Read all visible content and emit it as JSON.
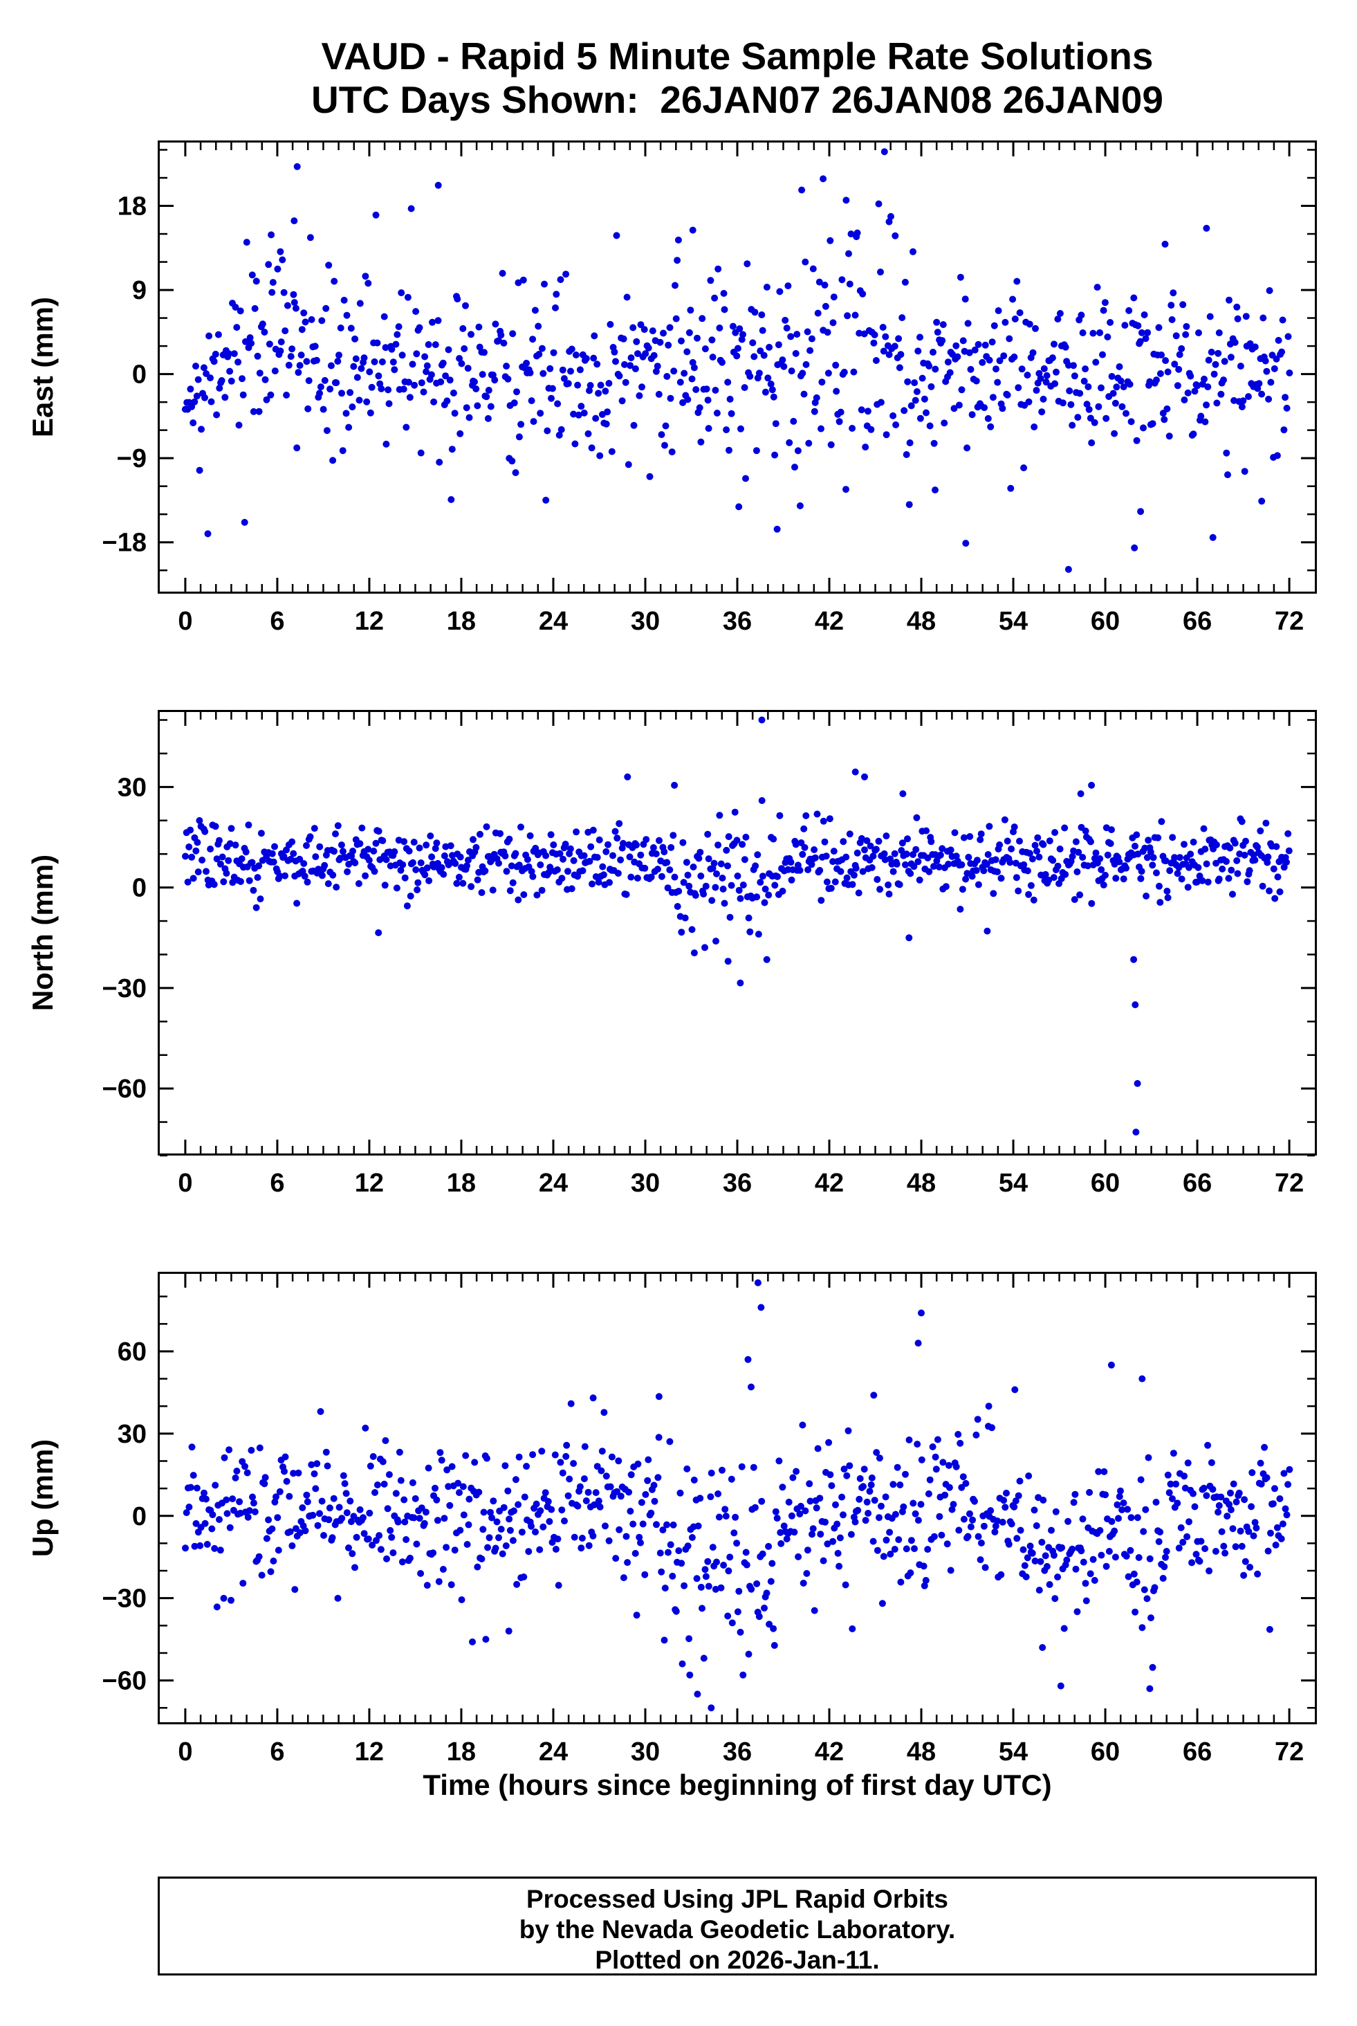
{
  "title": {
    "line1": "VAUD - Rapid 5 Minute Sample Rate Solutions",
    "line2": "UTC Days Shown:  26JAN07 26JAN08 26JAN09"
  },
  "xlabel": "Time (hours since beginning of first day UTC)",
  "footer": {
    "lines": [
      "Processed Using JPL Rapid Orbits",
      "by the Nevada Geodetic Laboratory.",
      "Plotted on 2026-Jan-11."
    ]
  },
  "style": {
    "point_color": "#0000dd",
    "frame_color": "#000000",
    "point_radius": 5,
    "frame_width": 3,
    "major_tick_len": 20,
    "minor_tick_len": 11,
    "tick_label_size": 38,
    "axis_label_size": 42
  },
  "chart_data": [
    {
      "type": "scatter",
      "name": "east",
      "ylabel": "East (mm)",
      "xlim": [
        -1.8,
        73.8
      ],
      "ylim": [
        -23.5,
        25.0
      ],
      "x_major_ticks": [
        0,
        6,
        12,
        18,
        24,
        30,
        36,
        42,
        48,
        54,
        60,
        66,
        72
      ],
      "x_minor_step": 1,
      "y_major_ticks": [
        -18,
        -9,
        0,
        9,
        18
      ],
      "y_minor_step": 3,
      "grid": false,
      "legend": false,
      "synthetic": {
        "seed": 11,
        "n": 840,
        "x_start": 0,
        "x_end": 72,
        "mean": 0,
        "std": 4.3,
        "tail_prob": 0.07,
        "tail_scale": 6.5,
        "clip": [
          -21.0,
          23.5
        ],
        "regions": [
          {
            "x0": 2.5,
            "x1": 8.5,
            "mean": 3.0,
            "std": 5.0
          },
          {
            "x0": 39.0,
            "x1": 47.0,
            "mean": 1.5,
            "std": 7.0
          }
        ],
        "extra_points": [
          [
            7.3,
            22.2
          ],
          [
            16.5,
            20.2
          ],
          [
            45.6,
            23.8
          ],
          [
            40.2,
            19.7
          ],
          [
            41.6,
            20.9
          ],
          [
            43.1,
            18.6
          ],
          [
            45.9,
            16.3
          ],
          [
            46.3,
            14.8
          ],
          [
            33.1,
            15.4
          ],
          [
            57.6,
            -20.9
          ],
          [
            61.9,
            -18.6
          ],
          [
            50.9,
            -18.1
          ],
          [
            38.6,
            -16.6
          ],
          [
            62.3,
            -14.7
          ],
          [
            70.2,
            -13.6
          ],
          [
            66.6,
            15.6
          ],
          [
            63.9,
            13.9
          ],
          [
            5.6,
            14.9
          ],
          [
            7.1,
            16.4
          ],
          [
            6.2,
            13.1
          ],
          [
            48.9,
            -12.4
          ],
          [
            36.1,
            -14.2
          ]
        ]
      }
    },
    {
      "type": "scatter",
      "name": "north",
      "ylabel": "North (mm)",
      "xlim": [
        -1.8,
        73.8
      ],
      "ylim": [
        -80,
        53
      ],
      "x_major_ticks": [
        0,
        6,
        12,
        18,
        24,
        30,
        36,
        42,
        48,
        54,
        60,
        66,
        72
      ],
      "x_minor_step": 1,
      "y_major_ticks": [
        -60,
        -30,
        0,
        30
      ],
      "y_minor_step": 10,
      "grid": false,
      "legend": false,
      "synthetic": {
        "seed": 22,
        "n": 840,
        "x_start": 0,
        "x_end": 72,
        "mean": 8,
        "std": 5.0,
        "tail_prob": 0.05,
        "tail_scale": 7.0,
        "clip": [
          -29,
          33
        ],
        "regions": [
          {
            "x0": 31.5,
            "x1": 38.5,
            "mean": 3.0,
            "std": 10.0
          }
        ],
        "extra_points": [
          [
            37.6,
            50
          ],
          [
            43.7,
            34.5
          ],
          [
            44.3,
            33
          ],
          [
            46.8,
            28
          ],
          [
            31.9,
            30.5
          ],
          [
            36.2,
            -28.5
          ],
          [
            35.4,
            -22
          ],
          [
            33.2,
            -19.5
          ],
          [
            34.6,
            -16
          ],
          [
            62.0,
            -73
          ],
          [
            62.1,
            -58.5
          ],
          [
            61.95,
            -35
          ],
          [
            61.85,
            -21.5
          ],
          [
            52.3,
            -13
          ],
          [
            47.2,
            -15
          ],
          [
            12.6,
            -13.5
          ],
          [
            58.4,
            28
          ],
          [
            59.1,
            30.5
          ]
        ]
      }
    },
    {
      "type": "scatter",
      "name": "up",
      "ylabel": "Up (mm)",
      "xlim": [
        -1.8,
        73.8
      ],
      "ylim": [
        -76,
        89
      ],
      "x_major_ticks": [
        0,
        6,
        12,
        18,
        24,
        30,
        36,
        42,
        48,
        54,
        60,
        66,
        72
      ],
      "x_minor_step": 1,
      "y_major_ticks": [
        -60,
        -30,
        0,
        30,
        60
      ],
      "y_minor_step": 10,
      "grid": false,
      "legend": false,
      "synthetic": {
        "seed": 33,
        "n": 840,
        "x_start": 0,
        "x_end": 72,
        "mean": 2,
        "std": 13,
        "tail_prob": 0.05,
        "tail_scale": 12,
        "clip": [
          -58,
          58
        ],
        "regions": [
          {
            "x0": 31.0,
            "x1": 38.5,
            "mean": -16,
            "std": 19
          },
          {
            "x0": 54.5,
            "x1": 59.5,
            "mean": -13,
            "std": 10
          },
          {
            "x0": 60.0,
            "x1": 64.0,
            "mean": -6,
            "std": 16
          }
        ],
        "extra_points": [
          [
            37.35,
            85
          ],
          [
            37.55,
            76
          ],
          [
            48.0,
            74
          ],
          [
            47.8,
            63
          ],
          [
            36.7,
            57
          ],
          [
            60.4,
            55
          ],
          [
            62.4,
            50
          ],
          [
            36.9,
            47
          ],
          [
            30.9,
            43.5
          ],
          [
            26.6,
            43
          ],
          [
            44.9,
            44
          ],
          [
            33.4,
            -65
          ],
          [
            32.9,
            -58
          ],
          [
            34.3,
            -70
          ],
          [
            57.1,
            -62
          ],
          [
            62.9,
            -63
          ],
          [
            19.6,
            -45
          ],
          [
            21.1,
            -42
          ],
          [
            55.9,
            -48
          ],
          [
            52.4,
            40
          ],
          [
            54.1,
            46
          ]
        ]
      }
    }
  ]
}
